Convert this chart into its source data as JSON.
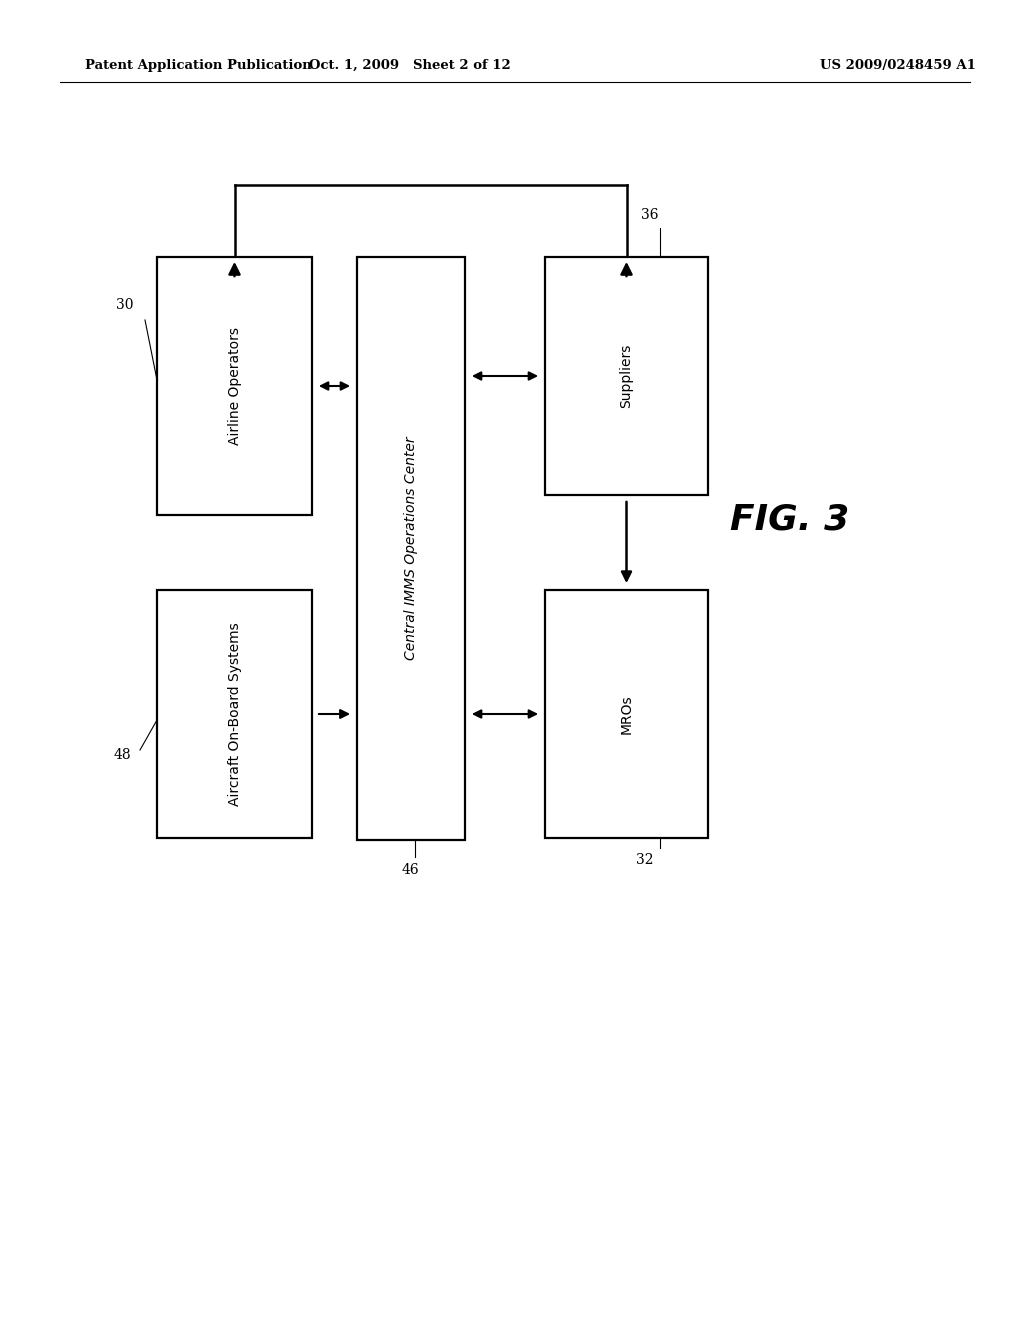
{
  "bg_color": "#ffffff",
  "header_left": "Patent Application Publication",
  "header_center": "Oct. 1, 2009   Sheet 2 of 12",
  "header_right": "US 2009/0248459 A1",
  "fig_label": "FIG. 3",
  "boxes": [
    {
      "id": "airline",
      "label": "Airline Operators",
      "tag": "30",
      "italic": false
    },
    {
      "id": "aircraft",
      "label": "Aircraft On-Board Systems",
      "tag": "48",
      "italic": false
    },
    {
      "id": "center",
      "label": "Central IMMS Operations Center",
      "tag": "46",
      "italic": true
    },
    {
      "id": "suppliers",
      "label": "Suppliers",
      "tag": "36",
      "italic": false
    },
    {
      "id": "mros",
      "label": "MROs",
      "tag": "32",
      "italic": false
    }
  ],
  "header_fontsize": 9.5,
  "label_fontsize": 10,
  "tag_fontsize": 10,
  "fig_label_fontsize": 26
}
